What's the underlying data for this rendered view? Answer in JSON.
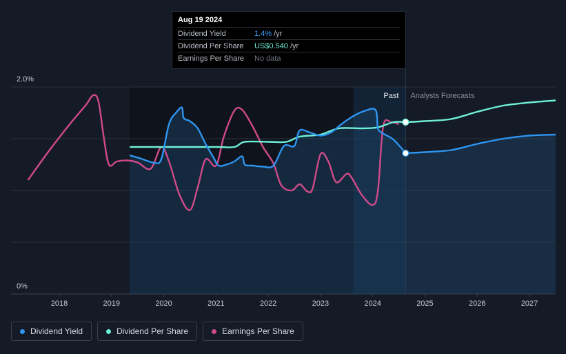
{
  "tooltip": {
    "date": "Aug 19 2024",
    "rows": [
      {
        "label": "Dividend Yield",
        "value": "1.4%",
        "unit": "/yr"
      },
      {
        "label": "Dividend Per Share",
        "value": "US$0.540",
        "unit": "/yr"
      },
      {
        "label": "Earnings Per Share",
        "value": "No data",
        "unit": ""
      }
    ]
  },
  "legend": [
    {
      "label": "Dividend Yield",
      "color": "#2e95f0"
    },
    {
      "label": "Dividend Per Share",
      "color": "#6ff0d8"
    },
    {
      "label": "Earnings Per Share",
      "color": "#d04a8a"
    }
  ],
  "chart_data": {
    "type": "line",
    "y_ticks": [
      "0%",
      "2.0%"
    ],
    "ylim": [
      0,
      2.0
    ],
    "xlim": [
      2017.4,
      2027.5
    ],
    "x_ticks": [
      "2018",
      "2019",
      "2020",
      "2021",
      "2022",
      "2023",
      "2024",
      "2025",
      "2026",
      "2027"
    ],
    "past_label": "Past",
    "forecast_label": "Analysts Forecasts",
    "past_start": 2019.35,
    "past_end": 2024.63,
    "highlight_start": 2023.63,
    "series": [
      {
        "name": "Dividend Yield",
        "color": "#2e95f0",
        "points": [
          [
            2019.35,
            1.34
          ],
          [
            2019.55,
            1.31
          ],
          [
            2019.8,
            1.27
          ],
          [
            2019.95,
            1.3
          ],
          [
            2020.1,
            1.64
          ],
          [
            2020.25,
            1.76
          ],
          [
            2020.35,
            1.8
          ],
          [
            2020.38,
            1.7
          ],
          [
            2020.5,
            1.67
          ],
          [
            2020.65,
            1.6
          ],
          [
            2020.8,
            1.45
          ],
          [
            2020.95,
            1.32
          ],
          [
            2021.05,
            1.24
          ],
          [
            2021.2,
            1.25
          ],
          [
            2021.35,
            1.28
          ],
          [
            2021.5,
            1.33
          ],
          [
            2021.55,
            1.25
          ],
          [
            2021.7,
            1.24
          ],
          [
            2021.9,
            1.23
          ],
          [
            2022.1,
            1.24
          ],
          [
            2022.3,
            1.43
          ],
          [
            2022.5,
            1.43
          ],
          [
            2022.6,
            1.58
          ],
          [
            2022.8,
            1.56
          ],
          [
            2023.0,
            1.53
          ],
          [
            2023.2,
            1.56
          ],
          [
            2023.4,
            1.64
          ],
          [
            2023.6,
            1.71
          ],
          [
            2023.8,
            1.76
          ],
          [
            2024.05,
            1.78
          ],
          [
            2024.1,
            1.6
          ],
          [
            2024.2,
            1.55
          ],
          [
            2024.4,
            1.49
          ],
          [
            2024.63,
            1.36
          ]
        ],
        "forecast": [
          [
            2024.63,
            1.36
          ],
          [
            2025.0,
            1.37
          ],
          [
            2025.5,
            1.39
          ],
          [
            2026.0,
            1.45
          ],
          [
            2026.5,
            1.5
          ],
          [
            2027.0,
            1.53
          ],
          [
            2027.5,
            1.54
          ]
        ]
      },
      {
        "name": "Dividend Per Share",
        "color": "#6ff0d8",
        "points": [
          [
            2019.35,
            1.42
          ],
          [
            2020.0,
            1.42
          ],
          [
            2021.0,
            1.42
          ],
          [
            2021.35,
            1.42
          ],
          [
            2021.55,
            1.47
          ],
          [
            2022.0,
            1.47
          ],
          [
            2022.35,
            1.47
          ],
          [
            2022.6,
            1.52
          ],
          [
            2023.0,
            1.54
          ],
          [
            2023.35,
            1.6
          ],
          [
            2023.8,
            1.6
          ],
          [
            2024.1,
            1.61
          ],
          [
            2024.4,
            1.66
          ],
          [
            2024.63,
            1.66
          ]
        ],
        "forecast": [
          [
            2024.63,
            1.66
          ],
          [
            2025.0,
            1.67
          ],
          [
            2025.5,
            1.69
          ],
          [
            2026.0,
            1.76
          ],
          [
            2026.5,
            1.82
          ],
          [
            2027.0,
            1.85
          ],
          [
            2027.5,
            1.87
          ]
        ]
      },
      {
        "name": "Earnings Per Share",
        "color": "#d04a8a",
        "points": [
          [
            2017.4,
            1.1
          ],
          [
            2017.8,
            1.38
          ],
          [
            2018.2,
            1.64
          ],
          [
            2018.5,
            1.82
          ],
          [
            2018.65,
            1.92
          ],
          [
            2018.75,
            1.86
          ],
          [
            2018.85,
            1.52
          ],
          [
            2018.95,
            1.25
          ],
          [
            2019.1,
            1.28
          ],
          [
            2019.3,
            1.29
          ],
          [
            2019.5,
            1.27
          ],
          [
            2019.75,
            1.21
          ],
          [
            2019.95,
            1.42
          ],
          [
            2020.1,
            1.28
          ],
          [
            2020.3,
            0.96
          ],
          [
            2020.5,
            0.81
          ],
          [
            2020.65,
            1.03
          ],
          [
            2020.8,
            1.3
          ],
          [
            2021.0,
            1.24
          ],
          [
            2021.15,
            1.52
          ],
          [
            2021.35,
            1.77
          ],
          [
            2021.5,
            1.78
          ],
          [
            2021.7,
            1.62
          ],
          [
            2021.9,
            1.42
          ],
          [
            2022.1,
            1.26
          ],
          [
            2022.25,
            1.05
          ],
          [
            2022.45,
            1.0
          ],
          [
            2022.6,
            1.06
          ],
          [
            2022.75,
            0.99
          ],
          [
            2022.85,
            1.02
          ],
          [
            2023.0,
            1.35
          ],
          [
            2023.15,
            1.28
          ],
          [
            2023.3,
            1.08
          ],
          [
            2023.5,
            1.16
          ],
          [
            2023.6,
            1.12
          ],
          [
            2023.8,
            0.95
          ],
          [
            2024.0,
            0.86
          ],
          [
            2024.1,
            1.0
          ],
          [
            2024.2,
            1.62
          ],
          [
            2024.35,
            1.66
          ],
          [
            2024.5,
            1.64
          ]
        ],
        "forecast": []
      }
    ],
    "markers": [
      {
        "series": "Dividend Per Share",
        "x": 2024.63,
        "y": 1.66
      },
      {
        "series": "Dividend Yield",
        "x": 2024.63,
        "y": 1.36
      }
    ]
  }
}
